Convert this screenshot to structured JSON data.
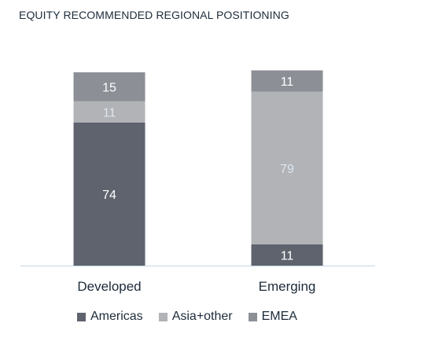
{
  "chart_data": {
    "type": "bar",
    "stacked": true,
    "title": "EQUITY RECOMMENDED REGIONAL POSITIONING",
    "categories": [
      "Developed",
      "Emerging"
    ],
    "series": [
      {
        "name": "Americas",
        "values": [
          74,
          11
        ],
        "color": "#5f636e",
        "label_color": "#ffffff"
      },
      {
        "name": "Asia+other",
        "values": [
          11,
          79
        ],
        "color": "#b1b3b6",
        "label_color": "#dde5ef"
      },
      {
        "name": "EMEA",
        "values": [
          15,
          11
        ],
        "color": "#8c8f96",
        "label_color": "#ffffff"
      }
    ],
    "ylim": [
      0,
      100
    ],
    "grid": false,
    "legend": "bottom",
    "axis_line_color": "#c4d7e6"
  }
}
